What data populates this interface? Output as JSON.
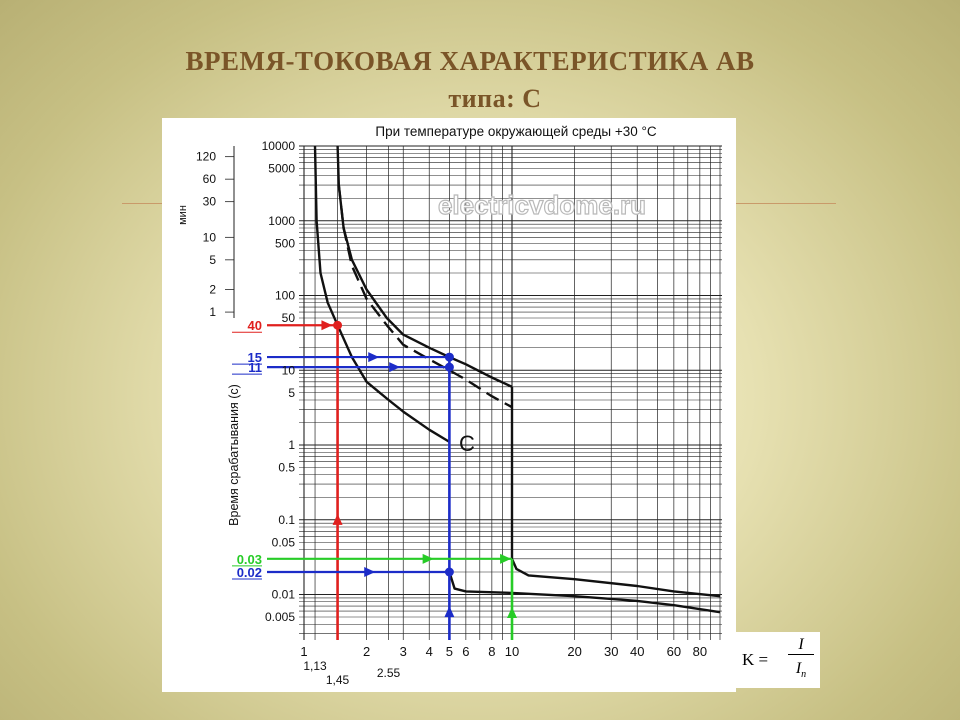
{
  "slide": {
    "title_line1": "ВРЕМЯ-ТОКОВАЯ ХАРАКТЕРИСТИКА АВ",
    "title_line2": "типа: С"
  },
  "formula": {
    "lhs": "K =",
    "numerator": "I",
    "denominator_main": "I",
    "denominator_sub": "n"
  },
  "chart_data": {
    "type": "line",
    "title": "При температуре окружающей среды +30 °C",
    "watermark": "electricvdome.ru",
    "xscale": "log",
    "yscale": "log",
    "xlim": [
      1,
      100
    ],
    "ylim": [
      0.004,
      10000
    ],
    "x_ticks": [
      1,
      2,
      3,
      4,
      5,
      6,
      8,
      10,
      20,
      30,
      40,
      60,
      80
    ],
    "x_tick_labels": [
      {
        "x": 1,
        "label": "1"
      },
      {
        "x": 2,
        "label": "2"
      },
      {
        "x": 3,
        "label": "3"
      },
      {
        "x": 4,
        "label": "4"
      },
      {
        "x": 5,
        "label": "5"
      },
      {
        "x": 6,
        "label": "6"
      },
      {
        "x": 8,
        "label": "8"
      },
      {
        "x": 10,
        "label": "10"
      },
      {
        "x": 20,
        "label": "20"
      },
      {
        "x": 30,
        "label": "30"
      },
      {
        "x": 40,
        "label": "40"
      },
      {
        "x": 60,
        "label": "60"
      },
      {
        "x": 80,
        "label": "80"
      }
    ],
    "x_sub_labels": [
      {
        "x": 1.13,
        "label": "1,13",
        "row": 1
      },
      {
        "x": 1.45,
        "label": "1,45",
        "row": 2
      },
      {
        "x": 2.55,
        "label": "2.55",
        "row": 1.5
      }
    ],
    "y_ticks_seconds": [
      {
        "y": 10000,
        "label": "10000"
      },
      {
        "y": 5000,
        "label": "5000"
      },
      {
        "y": 1000,
        "label": "1000"
      },
      {
        "y": 500,
        "label": "500"
      },
      {
        "y": 100,
        "label": "100"
      },
      {
        "y": 50,
        "label": "50"
      },
      {
        "y": 10,
        "label": "10"
      },
      {
        "y": 5,
        "label": "5"
      },
      {
        "y": 1,
        "label": "1"
      },
      {
        "y": 0.5,
        "label": "0.5"
      },
      {
        "y": 0.1,
        "label": "0.1"
      },
      {
        "y": 0.05,
        "label": "0.05"
      },
      {
        "y": 0.01,
        "label": "0.01"
      },
      {
        "y": 0.005,
        "label": "0.005"
      }
    ],
    "y_ticks_minutes": [
      {
        "y": 7200,
        "label": "120"
      },
      {
        "y": 3600,
        "label": "60"
      },
      {
        "y": 1800,
        "label": "30"
      },
      {
        "y": 600,
        "label": "10"
      },
      {
        "y": 300,
        "label": "5"
      },
      {
        "y": 120,
        "label": "2"
      },
      {
        "y": 60,
        "label": "1"
      }
    ],
    "minutes_axis_label": "мин",
    "ylabel": "Время срабатывания (с)",
    "curve_label": "C",
    "series": [
      {
        "style": "lower-thermal",
        "color": "#111111",
        "dashed": false,
        "points": [
          [
            1.13,
            10000
          ],
          [
            1.15,
            1000
          ],
          [
            1.2,
            200
          ],
          [
            1.3,
            80
          ],
          [
            1.45,
            40
          ],
          [
            1.7,
            15
          ],
          [
            2,
            7
          ],
          [
            2.55,
            4
          ],
          [
            3,
            2.8
          ],
          [
            4,
            1.6
          ],
          [
            5,
            1.1
          ]
        ]
      },
      {
        "style": "upper-thermal",
        "color": "#111111",
        "dashed": false,
        "points": [
          [
            1.45,
            10000
          ],
          [
            1.47,
            3000
          ],
          [
            1.55,
            800
          ],
          [
            1.7,
            300
          ],
          [
            2,
            120
          ],
          [
            2.5,
            50
          ],
          [
            3,
            30
          ],
          [
            4,
            20
          ],
          [
            5,
            15
          ],
          [
            6,
            12
          ],
          [
            8,
            8
          ],
          [
            10,
            6
          ]
        ]
      },
      {
        "style": "upper-thermal-dashed",
        "color": "#111111",
        "dashed": true,
        "points": [
          [
            1.47,
            3000
          ],
          [
            1.55,
            800
          ],
          [
            1.7,
            250
          ],
          [
            2,
            90
          ],
          [
            2.5,
            40
          ],
          [
            3,
            22
          ],
          [
            4,
            14
          ],
          [
            5,
            10
          ],
          [
            6,
            7.5
          ],
          [
            8,
            4.5
          ],
          [
            10,
            3.2
          ]
        ]
      },
      {
        "style": "upper-magnetic",
        "color": "#111111",
        "dashed": false,
        "points": [
          [
            10,
            6
          ],
          [
            10,
            0.03
          ],
          [
            10.5,
            0.022
          ],
          [
            12,
            0.018
          ],
          [
            20,
            0.016
          ],
          [
            40,
            0.013
          ],
          [
            60,
            0.011
          ],
          [
            100,
            0.0095
          ]
        ]
      },
      {
        "style": "lower-magnetic",
        "color": "#111111",
        "dashed": false,
        "points": [
          [
            5,
            0.02
          ],
          [
            5.3,
            0.012
          ],
          [
            6,
            0.011
          ],
          [
            10,
            0.0105
          ],
          [
            20,
            0.0095
          ],
          [
            40,
            0.0082
          ],
          [
            60,
            0.0072
          ],
          [
            100,
            0.0058
          ]
        ]
      }
    ],
    "annotations": [
      {
        "label": "40",
        "color": "#e0201e",
        "y": 40,
        "x": 1.45
      },
      {
        "label": "15",
        "color": "#1c2cc8",
        "y": 15,
        "x": 5
      },
      {
        "label": "11",
        "color": "#1c2cc8",
        "y": 11,
        "x": 5
      },
      {
        "label": "0.03",
        "color": "#27cc27",
        "y": 0.03,
        "x": 10
      },
      {
        "label": "0.02",
        "color": "#1c2cc8",
        "y": 0.02,
        "x": 5
      }
    ],
    "colors": {
      "red": "#e0201e",
      "blue": "#1c2cc8",
      "green": "#27cc27",
      "curve": "#111111"
    }
  }
}
